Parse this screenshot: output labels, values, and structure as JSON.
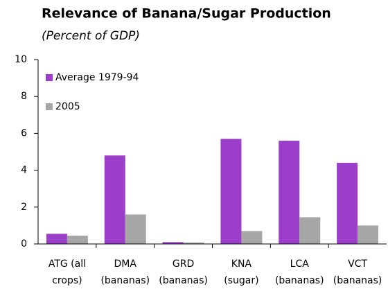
{
  "chart_data": {
    "type": "bar",
    "title": "Relevance of Banana/Sugar Production",
    "subtitle": "(Percent of GDP)",
    "categories": [
      "ATG (all\ncrops)",
      "DMA\n(bananas)",
      "GRD\n(bananas)",
      "KNA\n(sugar)",
      "LCA\n(bananas)",
      "VCT\n(bananas)"
    ],
    "series": [
      {
        "name": "Average 1979-94",
        "color": "#9b3fca",
        "values": [
          0.55,
          4.8,
          0.1,
          5.7,
          5.6,
          4.4
        ]
      },
      {
        "name": "2005",
        "color": "#a6a6a6",
        "values": [
          0.45,
          1.6,
          0.08,
          0.7,
          1.45,
          1.0
        ]
      }
    ],
    "ylim": [
      0,
      10
    ],
    "yticks": [
      0,
      2,
      4,
      6,
      8,
      10
    ],
    "legend": "upper left"
  }
}
